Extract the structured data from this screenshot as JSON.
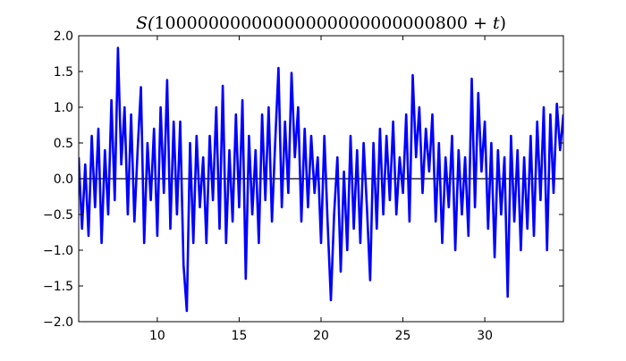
{
  "chart_data": {
    "type": "line",
    "title": "S(10000000000000000000000000800 + t)",
    "title_parts": {
      "prefix": "S(",
      "number": "10000000000000000000000000800",
      "plus": " + ",
      "var": "t",
      "suffix": ")"
    },
    "xlabel": "",
    "ylabel": "",
    "xlim": [
      5.2,
      34.8
    ],
    "ylim": [
      -2.0,
      2.0
    ],
    "xticks": [
      10,
      15,
      20,
      25,
      30
    ],
    "xtick_labels": [
      "10",
      "15",
      "20",
      "25",
      "30"
    ],
    "yticks": [
      -2.0,
      -1.5,
      -1.0,
      -0.5,
      0.0,
      0.5,
      1.0,
      1.5,
      2.0
    ],
    "ytick_labels": [
      "−2.0",
      "−1.5",
      "−1.0",
      "−0.5",
      "0.0",
      "0.5",
      "1.0",
      "1.5",
      "2.0"
    ],
    "grid": false,
    "zero_line": true,
    "line_color": "#0000ff",
    "zero_line_color": "#000000",
    "x": [
      5.2,
      5.4,
      5.6,
      5.8,
      6.0,
      6.2,
      6.4,
      6.6,
      6.8,
      7.0,
      7.2,
      7.4,
      7.6,
      7.8,
      8.0,
      8.2,
      8.4,
      8.6,
      8.8,
      9.0,
      9.2,
      9.4,
      9.6,
      9.8,
      10.0,
      10.2,
      10.4,
      10.6,
      10.8,
      11.0,
      11.2,
      11.4,
      11.6,
      11.8,
      12.0,
      12.2,
      12.4,
      12.6,
      12.8,
      13.0,
      13.2,
      13.4,
      13.6,
      13.8,
      14.0,
      14.2,
      14.4,
      14.6,
      14.8,
      15.0,
      15.2,
      15.4,
      15.6,
      15.8,
      16.0,
      16.2,
      16.4,
      16.6,
      16.8,
      17.0,
      17.2,
      17.4,
      17.6,
      17.8,
      18.0,
      18.2,
      18.4,
      18.6,
      18.8,
      19.0,
      19.2,
      19.4,
      19.6,
      19.8,
      20.0,
      20.2,
      20.4,
      20.6,
      20.8,
      21.0,
      21.2,
      21.4,
      21.6,
      21.8,
      22.0,
      22.2,
      22.4,
      22.6,
      22.8,
      23.0,
      23.2,
      23.4,
      23.6,
      23.8,
      24.0,
      24.2,
      24.4,
      24.6,
      24.8,
      25.0,
      25.2,
      25.4,
      25.6,
      25.8,
      26.0,
      26.2,
      26.4,
      26.6,
      26.8,
      27.0,
      27.2,
      27.4,
      27.6,
      27.8,
      28.0,
      28.2,
      28.4,
      28.6,
      28.8,
      29.0,
      29.2,
      29.4,
      29.6,
      29.8,
      30.0,
      30.2,
      30.4,
      30.6,
      30.8,
      31.0,
      31.2,
      31.4,
      31.6,
      31.8,
      32.0,
      32.2,
      32.4,
      32.6,
      32.8,
      33.0,
      33.2,
      33.4,
      33.6,
      33.8,
      34.0,
      34.2,
      34.4,
      34.6,
      34.8
    ],
    "values": [
      0.3,
      -0.7,
      0.2,
      -0.8,
      0.6,
      -0.4,
      0.7,
      -0.9,
      0.4,
      -0.5,
      1.1,
      -0.3,
      1.83,
      0.2,
      1.0,
      -0.5,
      0.9,
      -0.6,
      0.4,
      1.28,
      -0.9,
      0.5,
      -0.3,
      0.7,
      -0.8,
      1.0,
      -0.2,
      1.38,
      -0.7,
      0.8,
      -0.5,
      0.8,
      -1.2,
      -1.85,
      0.5,
      -0.9,
      0.6,
      -0.4,
      0.3,
      -0.9,
      0.6,
      -0.3,
      1.0,
      -0.7,
      1.3,
      -0.9,
      0.4,
      -0.6,
      0.9,
      -0.4,
      1.1,
      -1.4,
      0.6,
      -0.5,
      0.4,
      -0.9,
      0.9,
      -0.3,
      1.0,
      -0.6,
      0.5,
      1.55,
      -0.4,
      0.8,
      -0.2,
      1.48,
      0.3,
      1.0,
      -0.6,
      0.7,
      -0.4,
      0.6,
      -0.2,
      0.3,
      -0.9,
      0.6,
      -0.6,
      -1.7,
      -0.5,
      0.3,
      -1.3,
      0.1,
      -1.0,
      0.6,
      -0.7,
      0.4,
      -0.9,
      0.5,
      -0.4,
      -1.42,
      0.5,
      -0.7,
      0.7,
      -0.5,
      0.6,
      -0.3,
      0.8,
      -0.5,
      0.3,
      -0.2,
      0.9,
      -0.6,
      1.45,
      0.3,
      1.0,
      -0.2,
      0.7,
      0.1,
      0.9,
      -0.6,
      0.5,
      -0.9,
      0.3,
      -0.4,
      0.6,
      -1.0,
      0.4,
      -0.5,
      0.3,
      -0.8,
      1.4,
      -0.4,
      1.2,
      0.1,
      0.8,
      -0.7,
      0.5,
      -1.1,
      0.4,
      -0.5,
      0.3,
      -1.65,
      0.6,
      -0.6,
      0.4,
      -1.0,
      0.3,
      -0.7,
      0.6,
      -0.8,
      0.8,
      -0.3,
      1.0,
      -1.0,
      0.9,
      -0.2,
      1.05,
      0.4,
      0.9
    ]
  }
}
